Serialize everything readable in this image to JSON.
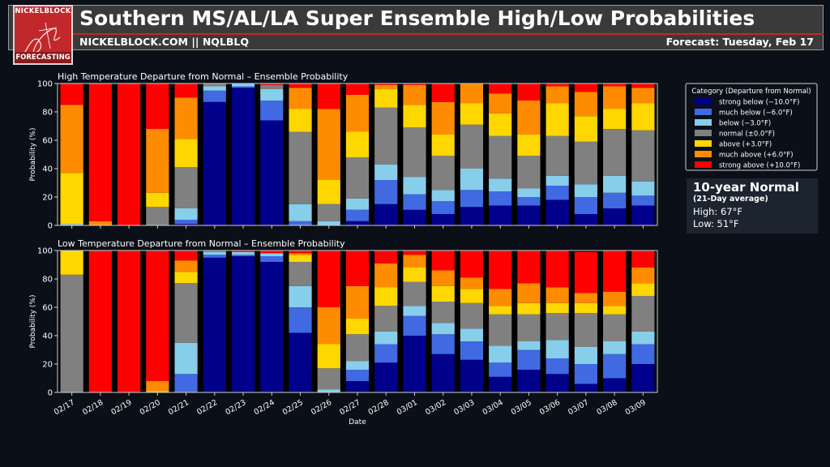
{
  "header": {
    "title": "Southern MS/AL/LA Super Ensemble High/Low Probabilities",
    "subtitle": "NICKELBLOCK.COM || NQLBLQ",
    "forecast": "Forecast: Tuesday, Feb 17",
    "logo_top": "NICKELBLOCK",
    "logo_bottom": "FORECASTING"
  },
  "normal_box": {
    "title": "10-year Normal",
    "subtitle": "(21-Day average)",
    "high": "High: 67°F",
    "low": "Low:  51°F"
  },
  "colors": {
    "background": "#0b1018",
    "strong_below": "#00008b",
    "much_below": "#4169e1",
    "below": "#87ceeb",
    "normal": "#808080",
    "above": "#ffd700",
    "much_above": "#ff8c00",
    "strong_above": "#ff0000"
  },
  "chart_data": [
    {
      "type": "bar",
      "stacked": true,
      "title": "High Temperature Departure from Normal – Ensemble Probability",
      "xlabel": "",
      "ylabel": "Probability (%)",
      "ylim": [
        0,
        100
      ],
      "yticks": [
        0,
        20,
        40,
        60,
        80,
        100
      ],
      "categories": [
        "02/17",
        "02/18",
        "02/19",
        "02/20",
        "02/21",
        "02/22",
        "02/23",
        "02/24",
        "02/25",
        "02/26",
        "02/27",
        "02/28",
        "03/01",
        "03/02",
        "03/03",
        "03/04",
        "03/05",
        "03/06",
        "03/07",
        "03/08",
        "03/09"
      ],
      "legend": {
        "title": "Category (Departure from Normal)",
        "position": "right",
        "entries": [
          "strong below (−10.0°F)",
          "much below (−6.0°F)",
          "below (−3.0°F)",
          "normal (±0.0°F)",
          "above (+3.0°F)",
          "much above (+6.0°F)",
          "strong above (+10.0°F)"
        ]
      },
      "series": [
        {
          "name": "strong below (−10.0°F)",
          "values": [
            0,
            0,
            0,
            0,
            1,
            87,
            97,
            74,
            0,
            0,
            3,
            15,
            11,
            8,
            13,
            14,
            14,
            18,
            8,
            12,
            14
          ]
        },
        {
          "name": "much below (−6.0°F)",
          "values": [
            0,
            0,
            0,
            0,
            3,
            8,
            1,
            14,
            3,
            0,
            8,
            17,
            11,
            9,
            12,
            10,
            6,
            10,
            12,
            11,
            7
          ]
        },
        {
          "name": "below (−3.0°F)",
          "values": [
            1,
            0,
            0,
            0,
            8,
            3,
            2,
            8,
            12,
            3,
            8,
            11,
            12,
            8,
            15,
            9,
            6,
            7,
            9,
            12,
            10
          ]
        },
        {
          "name": "normal (±0.0°F)",
          "values": [
            0,
            0,
            0,
            13,
            29,
            2,
            0,
            3,
            51,
            12,
            29,
            40,
            35,
            24,
            31,
            30,
            23,
            28,
            30,
            33,
            36
          ]
        },
        {
          "name": "above (+3.0°F)",
          "values": [
            36,
            0,
            0,
            10,
            20,
            0,
            0,
            0,
            16,
            17,
            18,
            13,
            16,
            15,
            15,
            16,
            15,
            23,
            18,
            14,
            19
          ]
        },
        {
          "name": "much above (+6.0°F)",
          "values": [
            48,
            3,
            0,
            45,
            29,
            0,
            0,
            0,
            15,
            50,
            26,
            3,
            14,
            23,
            14,
            14,
            24,
            12,
            17,
            16,
            11
          ]
        },
        {
          "name": "strong above (+10.0°F)",
          "values": [
            15,
            97,
            100,
            32,
            10,
            0,
            0,
            1,
            3,
            18,
            8,
            1,
            1,
            13,
            0,
            7,
            12,
            2,
            6,
            2,
            3
          ]
        }
      ]
    },
    {
      "type": "bar",
      "stacked": true,
      "title": "Low Temperature Departure from Normal – Ensemble Probability",
      "xlabel": "Date",
      "ylabel": "Probability (%)",
      "ylim": [
        0,
        100
      ],
      "yticks": [
        0,
        20,
        40,
        60,
        80,
        100
      ],
      "categories": [
        "02/17",
        "02/18",
        "02/19",
        "02/20",
        "02/21",
        "02/22",
        "02/23",
        "02/24",
        "02/25",
        "02/26",
        "02/27",
        "02/28",
        "03/01",
        "03/02",
        "03/03",
        "03/04",
        "03/05",
        "03/06",
        "03/07",
        "03/08",
        "03/09"
      ],
      "series": [
        {
          "name": "strong below (−10.0°F)",
          "values": [
            0,
            0,
            0,
            0,
            0,
            95,
            96,
            92,
            42,
            0,
            8,
            21,
            40,
            27,
            23,
            11,
            16,
            13,
            6,
            10,
            20
          ]
        },
        {
          "name": "much below (−6.0°F)",
          "values": [
            0,
            0,
            0,
            0,
            13,
            2,
            1,
            4,
            18,
            0,
            8,
            13,
            14,
            14,
            13,
            10,
            14,
            11,
            14,
            17,
            14
          ]
        },
        {
          "name": "below (−3.0°F)",
          "values": [
            0,
            0,
            0,
            0,
            22,
            2,
            2,
            2,
            15,
            2,
            6,
            9,
            7,
            8,
            9,
            12,
            6,
            13,
            12,
            9,
            9
          ]
        },
        {
          "name": "normal (±0.0°F)",
          "values": [
            83,
            0,
            0,
            0,
            42,
            1,
            0,
            0,
            17,
            15,
            19,
            18,
            17,
            15,
            18,
            22,
            19,
            19,
            24,
            19,
            25
          ]
        },
        {
          "name": "above (+3.0°F)",
          "values": [
            17,
            0,
            0,
            1,
            8,
            0,
            0,
            0,
            5,
            17,
            11,
            13,
            10,
            11,
            10,
            6,
            8,
            7,
            7,
            6,
            9
          ]
        },
        {
          "name": "much above (+6.0°F)",
          "values": [
            0,
            0,
            0,
            7,
            8,
            0,
            0,
            0,
            1,
            26,
            23,
            17,
            9,
            11,
            8,
            12,
            14,
            11,
            7,
            10,
            11
          ]
        },
        {
          "name": "strong above (+10.0°F)",
          "values": [
            0,
            100,
            100,
            92,
            7,
            0,
            1,
            2,
            2,
            40,
            25,
            9,
            3,
            14,
            19,
            27,
            23,
            26,
            29,
            29,
            12
          ]
        }
      ]
    }
  ]
}
